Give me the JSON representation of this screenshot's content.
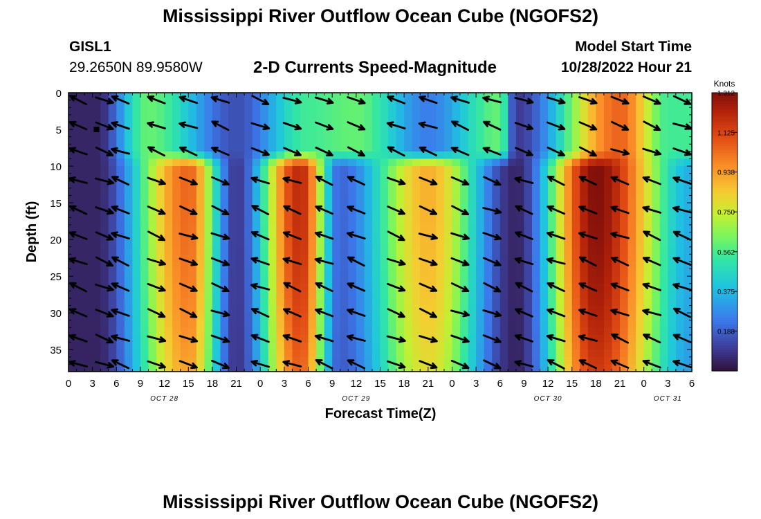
{
  "page": {
    "title": "Mississippi River Outflow Ocean Cube (NGOFS2)",
    "footer_title": "Mississippi River Outflow Ocean Cube (NGOFS2)",
    "station_id": "GISL1",
    "station_coords": "29.2650N  89.9580W",
    "plot_subtitle": "2-D Currents Speed-Magnitude",
    "model_start_label": "Model Start Time",
    "model_start_value": "10/28/2022 Hour 21"
  },
  "chart_data": {
    "type": "heatmap",
    "title": "2-D Currents Speed-Magnitude",
    "xlabel": "Forecast Time(Z)",
    "ylabel": "Depth (ft)",
    "x_unit": "hours since 10/28/2022 00Z",
    "xlim": [
      0,
      78
    ],
    "ylim": [
      38,
      0
    ],
    "y_inverted": true,
    "x_ticks": [
      0,
      3,
      6,
      9,
      12,
      15,
      18,
      21,
      24,
      27,
      30,
      33,
      36,
      39,
      42,
      45,
      48,
      51,
      54,
      57,
      60,
      63,
      66,
      69,
      72,
      75,
      78
    ],
    "x_tick_labels": [
      "0",
      "3",
      "6",
      "9",
      "12",
      "15",
      "18",
      "21",
      "0",
      "3",
      "6",
      "9",
      "12",
      "15",
      "18",
      "21",
      "0",
      "3",
      "6",
      "9",
      "12",
      "15",
      "18",
      "21",
      "0",
      "3",
      "6"
    ],
    "date_labels": [
      {
        "x": 12,
        "text": "OCT 28"
      },
      {
        "x": 36,
        "text": "OCT 29"
      },
      {
        "x": 60,
        "text": "OCT 30"
      },
      {
        "x": 75,
        "text": "OCT 31"
      }
    ],
    "y_ticks": [
      0,
      5,
      10,
      15,
      20,
      25,
      30,
      35
    ],
    "y_tick_labels": [
      "0",
      "5",
      "10",
      "15",
      "20",
      "25",
      "30",
      "35"
    ],
    "colorbar": {
      "label": "Knots",
      "min": 0.0,
      "max": 1.312,
      "tick_values": [
        0.188,
        0.375,
        0.562,
        0.75,
        0.938,
        1.125,
        1.312
      ],
      "tick_labels": [
        "0.188",
        "0.375",
        "0.562",
        "0.750",
        "0.938",
        "1.125",
        "1.312"
      ]
    },
    "surface_layer": {
      "depth_range_ft": [
        0,
        8
      ],
      "peaks": [
        {
          "x": 3.5,
          "speed": 0.05
        },
        {
          "x": 10,
          "speed": 0.6
        },
        {
          "x": 21,
          "speed": 0.15
        },
        {
          "x": 30,
          "speed": 0.55
        },
        {
          "x": 36,
          "speed": 0.6
        },
        {
          "x": 45,
          "speed": 0.25
        },
        {
          "x": 54,
          "speed": 0.6
        },
        {
          "x": 56,
          "speed": 0.1
        },
        {
          "x": 69,
          "speed": 1.05
        },
        {
          "x": 75,
          "speed": 0.55
        }
      ]
    },
    "deep_layer": {
      "depth_range_ft": [
        10,
        38
      ],
      "peaks": [
        {
          "x": 3.5,
          "speed": 0.05
        },
        {
          "x": 15,
          "speed": 1.05
        },
        {
          "x": 21,
          "speed": 0.1
        },
        {
          "x": 29,
          "speed": 1.2
        },
        {
          "x": 34,
          "speed": 0.2
        },
        {
          "x": 45,
          "speed": 0.9
        },
        {
          "x": 56,
          "speed": 0.05
        },
        {
          "x": 66,
          "speed": 1.31
        },
        {
          "x": 78,
          "speed": 0.35
        }
      ]
    },
    "vector_columns": [
      {
        "x": 0.0,
        "surface_dir": "in",
        "deep_dir": "in"
      },
      {
        "x": 4.5,
        "surface_dir": "out",
        "deep_dir": "out"
      },
      {
        "x": 6.5,
        "surface_dir": "in",
        "deep_dir": "in"
      },
      {
        "x": 11,
        "surface_dir": "in",
        "deep_dir": "out"
      },
      {
        "x": 15,
        "surface_dir": "in",
        "deep_dir": "out"
      },
      {
        "x": 19,
        "surface_dir": "in",
        "deep_dir": "out"
      },
      {
        "x": 24,
        "surface_dir": "out",
        "deep_dir": "in"
      },
      {
        "x": 28,
        "surface_dir": "out",
        "deep_dir": "in"
      },
      {
        "x": 32,
        "surface_dir": "out",
        "deep_dir": "in"
      },
      {
        "x": 36,
        "surface_dir": "out",
        "deep_dir": "in"
      },
      {
        "x": 41,
        "surface_dir": "in",
        "deep_dir": "out"
      },
      {
        "x": 45,
        "surface_dir": "in",
        "deep_dir": "out"
      },
      {
        "x": 49,
        "surface_dir": "in",
        "deep_dir": "out"
      },
      {
        "x": 53,
        "surface_dir": "in",
        "deep_dir": "out"
      },
      {
        "x": 57,
        "surface_dir": "out",
        "deep_dir": "in"
      },
      {
        "x": 61,
        "surface_dir": "out",
        "deep_dir": "in"
      },
      {
        "x": 65,
        "surface_dir": "out",
        "deep_dir": "in"
      },
      {
        "x": 69,
        "surface_dir": "out",
        "deep_dir": "in"
      },
      {
        "x": 73,
        "surface_dir": "out",
        "deep_dir": "in"
      },
      {
        "x": 77.5,
        "surface_dir": "out",
        "deep_dir": "in"
      }
    ],
    "colors": {
      "frame": "#000000",
      "arrow": "#000000"
    }
  }
}
